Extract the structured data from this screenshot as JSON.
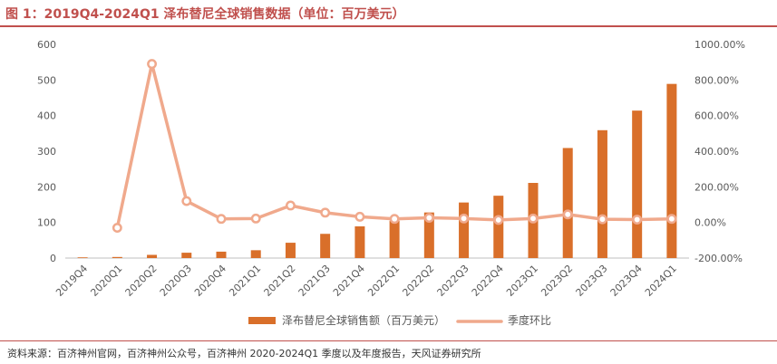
{
  "header": {
    "title": "图 1：2019Q4-2024Q1 泽布替尼全球销售数据（单位：百万美元）"
  },
  "footer": {
    "source": "资料来源：百济神州官网，百济神州公众号，百济神州 2020-2024Q1 季度以及年度报告，天风证券研究所"
  },
  "colors": {
    "accent": "#c0504d",
    "bar": "#d96f2a",
    "line": "#f0a98c",
    "axis_text": "#595959",
    "axis_line": "#bfbfbf"
  },
  "chart_data": {
    "type": "bar",
    "categories": [
      "2019Q4",
      "2020Q1",
      "2020Q2",
      "2020Q3",
      "2020Q4",
      "2021Q1",
      "2021Q2",
      "2021Q3",
      "2021Q4",
      "2022Q1",
      "2022Q2",
      "2022Q3",
      "2022Q4",
      "2023Q1",
      "2023Q2",
      "2023Q3",
      "2023Q4",
      "2024Q1"
    ],
    "series": [
      {
        "name": "泽布替尼全球销售额（百万美元）",
        "type": "bar",
        "axis": "left",
        "values": [
          2,
          3,
          9,
          15,
          18,
          22,
          43,
          68,
          89,
          105,
          128,
          156,
          175,
          211,
          309,
          359,
          414,
          489
        ]
      },
      {
        "name": "季度环比",
        "type": "line",
        "axis": "right",
        "values": [
          null,
          -30,
          890,
          120,
          20,
          22,
          95,
          55,
          32,
          20,
          26,
          22,
          14,
          22,
          45,
          18,
          16,
          20
        ]
      }
    ],
    "left_axis": {
      "min": 0,
      "max": 600,
      "ticks": [
        0,
        100,
        200,
        300,
        400,
        500,
        600
      ],
      "labels": [
        "0",
        "100",
        "200",
        "300",
        "400",
        "500",
        "600"
      ]
    },
    "right_axis": {
      "min": -200,
      "max": 1000,
      "ticks": [
        -200,
        0,
        200,
        400,
        600,
        800,
        1000
      ],
      "labels": [
        "-200.00%",
        "0.00%",
        "200.00%",
        "400.00%",
        "600.00%",
        "800.00%",
        "1000.00%"
      ]
    },
    "legend_position": "bottom",
    "grid": false
  }
}
